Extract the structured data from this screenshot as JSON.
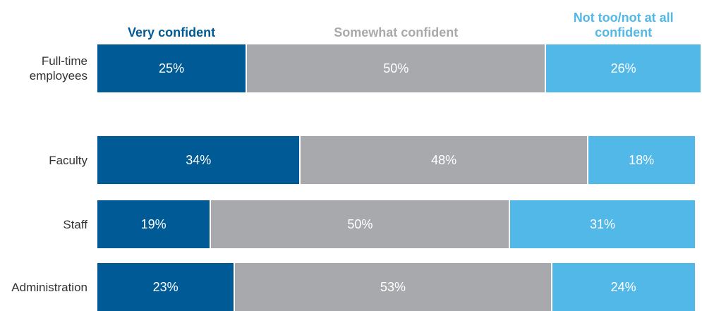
{
  "chart_data": {
    "type": "stacked-bar-horizontal",
    "categories": [
      "Full-time employees",
      "Faculty",
      "Staff",
      "Administration"
    ],
    "series": [
      {
        "name": "Very confident",
        "color": "#005a96",
        "values": [
          25,
          34,
          19,
          23
        ],
        "value_labels": [
          "25%",
          "34%",
          "19%",
          "23%"
        ]
      },
      {
        "name": "Somewhat confident",
        "color": "#a7a9ac",
        "values": [
          50,
          48,
          50,
          53
        ],
        "value_labels": [
          "50%",
          "48%",
          "50%",
          "53%"
        ]
      },
      {
        "name": "Not too/not at all confident",
        "color": "#52b8e8",
        "values": [
          26,
          18,
          31,
          24
        ],
        "value_labels": [
          "26%",
          "18%",
          "31%",
          "24%"
        ]
      }
    ]
  }
}
